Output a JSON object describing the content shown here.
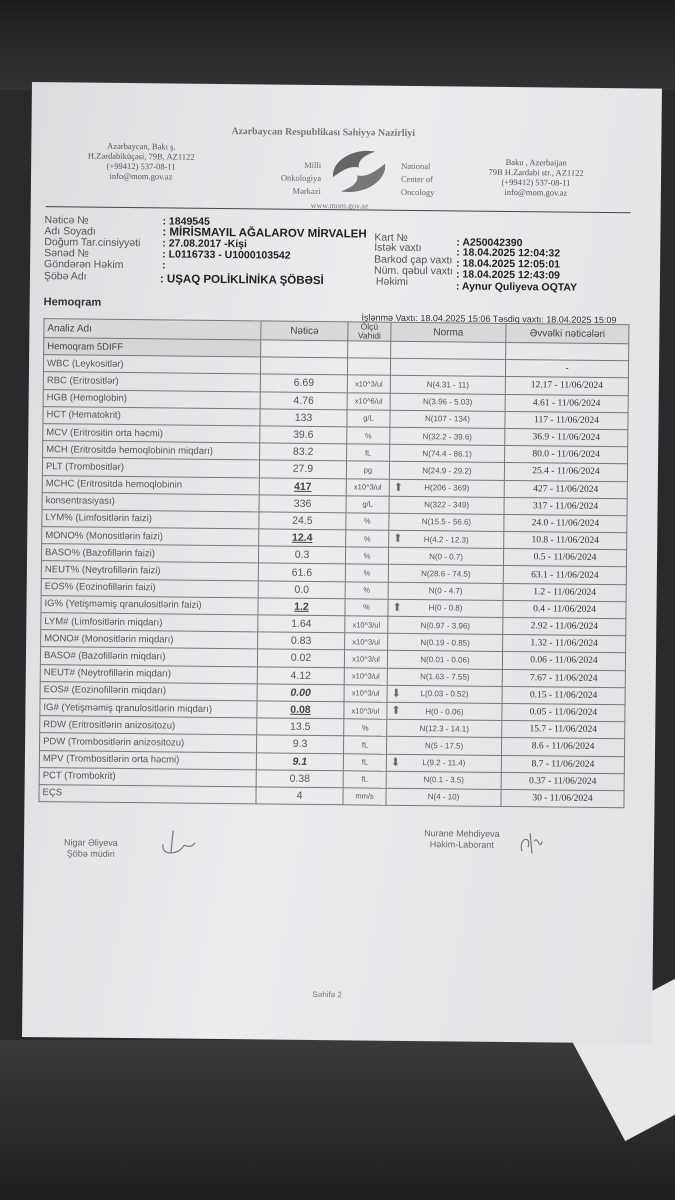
{
  "header": {
    "ministry": "Azərbaycan Respublikası Səhiyyə Nazirliyi",
    "left_address": [
      "Azərbaycan, Bakı ş.",
      "H.Zərdabiküçəsi, 79B, AZ1122",
      "(+99412) 537-08-11",
      "info@mom.gov.az"
    ],
    "right_address": [
      "Baku , Azerbaijan",
      "79B H.Zardabi str., AZ1122",
      "(+99412) 537-08-11",
      "info@mom.gov.az"
    ],
    "logo_left": [
      "Milli",
      "Onkologiya",
      "Mərkəzi"
    ],
    "logo_right": [
      "National",
      "Center of",
      "Oncology"
    ],
    "website": "www.mom.gov.az"
  },
  "patient": {
    "result_no_label": "Nəticə №",
    "result_no": ": 1849545",
    "name_label": "Adı Soyadı",
    "name": ": MİRİSMAYIL AĞALAROV MİRVALEH",
    "dob_label": "Doğum Tar.cinsiyyəti",
    "dob": ": 27.08.2017 -Kişi",
    "doc_label": "Sənəd №",
    "doc": ": L0116733 - U1000103542",
    "sender_label": "Göndərən Həkim",
    "sender": ":",
    "dept_label": "Şöbə Adı",
    "dept": ": UŞAQ POLİKLİNİKA ŞÖBƏSİ",
    "card_label": "Kart №",
    "card": ": A250042390",
    "request_label": "İstək vaxtı",
    "request": ": 18.04.2025 12:04:32",
    "barcode_label": "Barkod çap vaxtı",
    "barcode": ": 18.04.2025 12:05:01",
    "sample_label": "Nüm. qəbul vaxtı",
    "sample": ": 18.04.2025 12:43:09",
    "doctor_label": "Həkimi",
    "doctor": ": Aynur Quliyeva OQTAY"
  },
  "section": "Hemoqram",
  "processing": "İşlənmə Vaxtı: 18.04.2025 15:06 Təsdiq vaxtı: 18.04.2025 15:09",
  "table": {
    "headers": [
      "Analiz Adı",
      "Nəticə",
      "Ölçü Vahidi",
      "Norma",
      "Əvvəlki nəticələri"
    ],
    "group": "Hemoqram 5DIFF",
    "rows": [
      {
        "name": "WBC (Leykositlər)",
        "result": "",
        "unit": "",
        "flag": "",
        "norm": "",
        "prev": "-"
      },
      {
        "name": "RBC (Eritrositlər)",
        "result": "6.69",
        "unit": "x10^3/ul",
        "flag": "",
        "norm": "N(4.31 - 11)",
        "prev": "12.17 - 11/06/2024"
      },
      {
        "name": "HGB (Hemoglobin)",
        "result": "4.76",
        "unit": "x10^6/ul",
        "flag": "",
        "norm": "N(3.96 - 5.03)",
        "prev": "4.61 - 11/06/2024"
      },
      {
        "name": "HCT (Hematokrit)",
        "result": "133",
        "unit": "g/L",
        "flag": "",
        "norm": "N(107 - 134)",
        "prev": "117 - 11/06/2024"
      },
      {
        "name": "MCV (Eritrositin orta həcmi)",
        "result": "39.6",
        "unit": "%",
        "flag": "",
        "norm": "N(32.2 - 39.6)",
        "prev": "36.9 - 11/06/2024"
      },
      {
        "name": "MCH (Eritrositdə hemoqlobinin miqdarı)",
        "result": "83.2",
        "unit": "fL",
        "flag": "",
        "norm": "N(74.4 - 86.1)",
        "prev": "80.0 - 11/06/2024"
      },
      {
        "name": "PLT (Trombositlər)",
        "result": "27.9",
        "unit": "pg",
        "flag": "",
        "norm": "N(24.9 - 29.2)",
        "prev": "25.4 - 11/06/2024"
      },
      {
        "name": "MCHC (Eritrositdə hemoqlobinin",
        "result": "417",
        "unit": "x10^3/ul",
        "flag": "up",
        "norm": "H(206 - 369)",
        "prev": "427 - 11/06/2024",
        "style": "u"
      },
      {
        "name": "konsentrasiyası)",
        "result": "336",
        "unit": "g/L",
        "flag": "",
        "norm": "N(322 - 349)",
        "prev": "317 - 11/06/2024"
      },
      {
        "name": "LYM% (Limfositlərin faizi)",
        "result": "24.5",
        "unit": "%",
        "flag": "",
        "norm": "N(15.5 - 56.6)",
        "prev": "24.0 - 11/06/2024"
      },
      {
        "name": "MONO% (Monositlərin faizi)",
        "result": "12.4",
        "unit": "%",
        "flag": "up",
        "norm": "H(4.2 - 12.3)",
        "prev": "10.8 - 11/06/2024",
        "style": "u"
      },
      {
        "name": "BASO% (Bazofillərin faizi)",
        "result": "0.3",
        "unit": "%",
        "flag": "",
        "norm": "N(0 - 0.7)",
        "prev": "0.5 - 11/06/2024"
      },
      {
        "name": "NEUT% (Neytrofillərin faizi)",
        "result": "61.6",
        "unit": "%",
        "flag": "",
        "norm": "N(28.6 - 74.5)",
        "prev": "63.1 - 11/06/2024"
      },
      {
        "name": "EOS% (Eozinofillərin faizi)",
        "result": "0.0",
        "unit": "%",
        "flag": "",
        "norm": "N(0 - 4.7)",
        "prev": "1.2 - 11/06/2024"
      },
      {
        "name": "IG% (Yetişməmiş qranulositlərin faizi)",
        "result": "1.2",
        "unit": "%",
        "flag": "up",
        "norm": "H(0 - 0.8)",
        "prev": "0.4 - 11/06/2024",
        "style": "u"
      },
      {
        "name": "LYM# (Limfositlərin miqdarı)",
        "result": "1.64",
        "unit": "x10^3/ul",
        "flag": "",
        "norm": "N(0.97 - 3.96)",
        "prev": "2.92 - 11/06/2024"
      },
      {
        "name": "MONO# (Monositlərin miqdarı)",
        "result": "0.83",
        "unit": "x10^3/ul",
        "flag": "",
        "norm": "N(0.19 - 0.85)",
        "prev": "1.32 - 11/06/2024"
      },
      {
        "name": "BASO# (Bazofillərin miqdarı)",
        "result": "0.02",
        "unit": "x10^3/ul",
        "flag": "",
        "norm": "N(0.01 - 0.06)",
        "prev": "0.06 - 11/06/2024"
      },
      {
        "name": "NEUT# (Neytrofillərin miqdarı)",
        "result": "4.12",
        "unit": "x10^3/ul",
        "flag": "",
        "norm": "N(1.63 - 7.55)",
        "prev": "7.67 - 11/06/2024"
      },
      {
        "name": "EOS# (Eozinofillərin miqdarı)",
        "result": "0.00",
        "unit": "x10^3/ul",
        "flag": "down",
        "norm": "L(0.03 - 0.52)",
        "prev": "0.15 - 11/06/2024",
        "style": "i"
      },
      {
        "name": "IG# (Yetişməmiş qranulositlərin miqdarı)",
        "result": "0.08",
        "unit": "x10^3/ul",
        "flag": "up",
        "norm": "H(0 - 0.06)",
        "prev": "0.05 - 11/06/2024",
        "style": "u"
      },
      {
        "name": "RDW (Eritrositlərin anizositozu)",
        "result": "13.5",
        "unit": "%",
        "flag": "",
        "norm": "N(12.3 - 14.1)",
        "prev": "15.7 - 11/06/2024"
      },
      {
        "name": "PDW (Trombositlərin anizositozu)",
        "result": "9.3",
        "unit": "fL",
        "flag": "",
        "norm": "N(5 - 17.5)",
        "prev": "8.6 - 11/06/2024"
      },
      {
        "name": "MPV (Trombositlərin orta həcmi)",
        "result": "9.1",
        "unit": "fL",
        "flag": "down",
        "norm": "L(9.2 - 11.4)",
        "prev": "8.7 - 11/06/2024",
        "style": "i"
      },
      {
        "name": "PCT (Trombokrit)",
        "result": "0.38",
        "unit": "fL",
        "flag": "",
        "norm": "N(0.1 - 3.5)",
        "prev": "0.37 - 11/06/2024"
      },
      {
        "name": "EÇS",
        "result": "4",
        "unit": "mm/s",
        "flag": "",
        "norm": "N(4 - 10)",
        "prev": "30 - 11/06/2024"
      }
    ]
  },
  "signatures": {
    "left": [
      "Nigar Əliyeva",
      "Şöbə müdiri"
    ],
    "right": [
      "Nurane Mehdiyeva",
      "Həkim-Laborant"
    ]
  },
  "page_label": "Səhifə 2",
  "icons": {
    "up": "arrow-up-icon",
    "down": "arrow-down-icon"
  }
}
